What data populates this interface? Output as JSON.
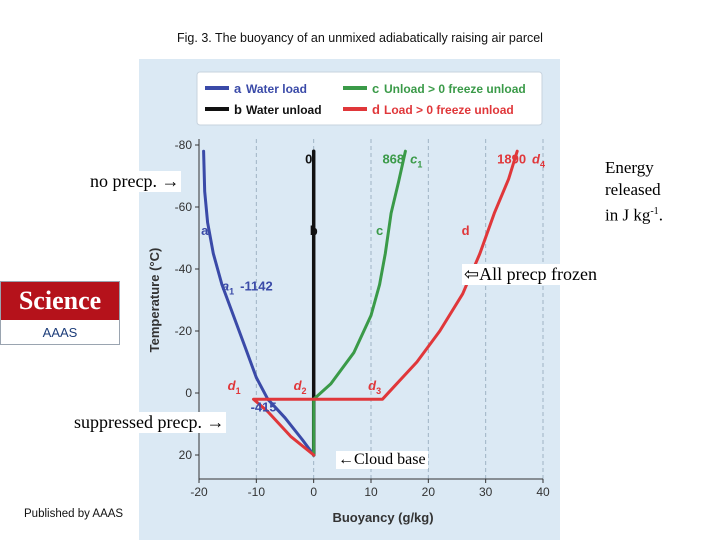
{
  "figure_title": "Fig. 3. The buoyancy of an unmixed adiabatically raising air parcel",
  "annotations": {
    "no_precip": "no precp. →",
    "energy_line1": "Energy",
    "energy_line2": "released",
    "energy_line3_base": "in J kg",
    "energy_line3_sup": "-1",
    "energy_line3_end": ".",
    "all_frozen": "⇦All precp frozen",
    "suppressed": "suppressed precp. →",
    "cloud_base": "←Cloud base"
  },
  "logo": {
    "word": "Science",
    "sub": "AAAS"
  },
  "publisher": "Published by AAAS",
  "colors": {
    "a": "#3a4aa8",
    "b": "#111111",
    "c": "#3a9a48",
    "d": "#e0373a",
    "panel": "#dbe9f4"
  },
  "chart_data": {
    "type": "line",
    "xlabel": "Buoyancy (g/kg)",
    "ylabel": "Temperature (°C)",
    "xlim": [
      -20,
      40
    ],
    "ylim": [
      25,
      -80
    ],
    "x_ticks": [
      -20,
      -10,
      0,
      10,
      20,
      30,
      40
    ],
    "y_ticks": [
      -80,
      -60,
      -40,
      -20,
      0,
      20
    ],
    "grid": "dashed vertical at x ticks",
    "legend": "top",
    "series": [
      {
        "key": "a",
        "name": "Water load",
        "color": "#3a4aa8",
        "points": [
          [
            0,
            20
          ],
          [
            -2,
            15
          ],
          [
            -5,
            8
          ],
          [
            -8,
            2
          ],
          [
            -10,
            -5
          ],
          [
            -12,
            -15
          ],
          [
            -14,
            -25
          ],
          [
            -16,
            -35
          ],
          [
            -17.5,
            -45
          ],
          [
            -18.5,
            -55
          ],
          [
            -19,
            -65
          ],
          [
            -19.2,
            -78
          ]
        ]
      },
      {
        "key": "b",
        "name": "Water unload",
        "color": "#111111",
        "points": [
          [
            0,
            20
          ],
          [
            0,
            -78
          ]
        ]
      },
      {
        "key": "c",
        "name": "Unload > 0 freeze unload",
        "color": "#3a9a48",
        "points": [
          [
            0,
            20
          ],
          [
            0,
            2
          ],
          [
            3,
            -3
          ],
          [
            7,
            -13
          ],
          [
            10,
            -25
          ],
          [
            11.5,
            -35
          ],
          [
            12.5,
            -45
          ],
          [
            13.5,
            -58
          ],
          [
            14.8,
            -68
          ],
          [
            16,
            -78
          ]
        ]
      },
      {
        "key": "d",
        "name": "Load > 0 freeze unload",
        "color": "#e0373a",
        "points": [
          [
            0,
            20
          ],
          [
            -4,
            14
          ],
          [
            -8,
            6
          ],
          [
            -10.5,
            2
          ],
          [
            0,
            2
          ],
          [
            12,
            2
          ],
          [
            14,
            -2
          ],
          [
            18,
            -10
          ],
          [
            22,
            -20
          ],
          [
            26,
            -32
          ],
          [
            29,
            -45
          ],
          [
            31.5,
            -58
          ],
          [
            34,
            -69
          ],
          [
            35.5,
            -78
          ]
        ]
      }
    ],
    "curve_labels": [
      {
        "text": "a",
        "x": -19,
        "y": -51
      },
      {
        "text": "b",
        "x": 0,
        "y": -51
      },
      {
        "text": "c",
        "x": 11.5,
        "y": -51
      },
      {
        "text": "d",
        "x": 26.5,
        "y": -51
      }
    ],
    "point_labels": [
      {
        "text": "a",
        "sub": "1",
        "value": "-1142",
        "x": -16,
        "y": -33,
        "color": "#3a4aa8"
      },
      {
        "text": "",
        "sub": "",
        "value": "-415",
        "x": -11,
        "y": 6,
        "color": "#3a4aa8"
      },
      {
        "text": "d",
        "sub": "1",
        "value": "",
        "x": -15,
        "y": -1,
        "color": "#e0373a"
      },
      {
        "text": "d",
        "sub": "2",
        "value": "",
        "x": -3.5,
        "y": -1,
        "color": "#e0373a"
      },
      {
        "text": "d",
        "sub": "3",
        "value": "",
        "x": 9.5,
        "y": -1,
        "color": "#e0373a"
      },
      {
        "text": "",
        "sub": "",
        "value": "0",
        "x": -1.5,
        "y": -74,
        "color": "#111111"
      },
      {
        "text": "c",
        "sub": "1",
        "value": "868",
        "x": 12,
        "y": -74,
        "color": "#3a9a48"
      },
      {
        "text": "d",
        "sub": "4",
        "value": "1890",
        "x": 32,
        "y": -74,
        "color": "#e0373a"
      }
    ]
  }
}
